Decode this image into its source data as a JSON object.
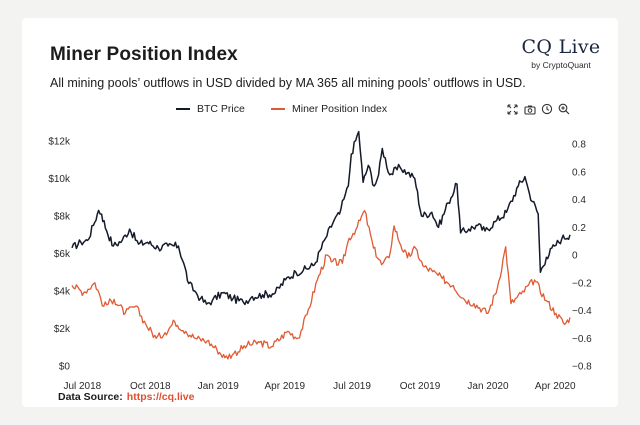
{
  "page": {
    "title": "Miner Position Index",
    "subtitle": "All mining pools’ outflows in USD divided by MA 365 all mining pools’ outflows in USD.",
    "brand": "CQ Live",
    "brand_by": "by CryptoQuant",
    "source_label": "Data Source:",
    "source_link": "https://cq.live"
  },
  "toolbar": {
    "icons": [
      "expand-icon",
      "camera-icon",
      "reset-icon",
      "zoom-in-icon"
    ]
  },
  "chart_data": {
    "type": "line",
    "title": "Miner Position Index",
    "colors": {
      "btc": "#141a2a",
      "mpi": "#e05a34"
    },
    "x_ticks": [
      "Jul 2018",
      "Oct 2018",
      "Jan 2019",
      "Apr 2019",
      "Jul 2019",
      "Oct 2019",
      "Jan 2020",
      "Apr 2020"
    ],
    "y_left": {
      "ticks": [
        "$0",
        "$2k",
        "$4k",
        "$6k",
        "$8k",
        "$10k",
        "$12k"
      ],
      "range": [
        0,
        12500
      ]
    },
    "y_right": {
      "ticks": [
        "0.8",
        "0.6",
        "0.4",
        "0.2",
        "0",
        "−0.2",
        "−0.4",
        "−0.6",
        "−0.8"
      ],
      "range": [
        -0.8,
        0.8
      ]
    },
    "x_range": [
      "2018-06-17",
      "2020-04-21"
    ],
    "grid": false,
    "legend_position": "top-center",
    "series": [
      {
        "name": "BTC Price",
        "axis": "left",
        "x": [
          "2018-06-17",
          "2018-06-29",
          "2018-07-08",
          "2018-07-16",
          "2018-07-23",
          "2018-07-27",
          "2018-08-03",
          "2018-08-12",
          "2018-08-24",
          "2018-09-03",
          "2018-09-15",
          "2018-09-27",
          "2018-10-12",
          "2018-10-25",
          "2018-11-08",
          "2018-11-15",
          "2018-11-22",
          "2018-11-30",
          "2018-12-08",
          "2018-12-16",
          "2018-12-24",
          "2019-01-07",
          "2019-01-21",
          "2019-02-04",
          "2019-02-16",
          "2019-03-02",
          "2019-03-19",
          "2019-04-02",
          "2019-04-16",
          "2019-04-26",
          "2019-05-11",
          "2019-05-26",
          "2019-06-07",
          "2019-06-14",
          "2019-06-20",
          "2019-06-26",
          "2019-06-30",
          "2019-07-10",
          "2019-07-16",
          "2019-07-23",
          "2019-07-31",
          "2019-08-06",
          "2019-08-11",
          "2019-08-21",
          "2019-09-04",
          "2019-09-14",
          "2019-09-24",
          "2019-10-03",
          "2019-10-17",
          "2019-10-26",
          "2019-11-08",
          "2019-11-20",
          "2019-11-25",
          "2019-12-06",
          "2019-12-18",
          "2019-12-28",
          "2020-01-11",
          "2020-01-26",
          "2020-02-11",
          "2020-02-20",
          "2020-02-26",
          "2020-03-09",
          "2020-03-12",
          "2020-03-20",
          "2020-03-31",
          "2020-04-10",
          "2020-04-21"
        ],
        "y": [
          6300,
          6600,
          6700,
          7500,
          8300,
          8100,
          7200,
          6400,
          6700,
          7300,
          6500,
          6600,
          6300,
          6400,
          6400,
          5500,
          4400,
          4000,
          3600,
          3300,
          3500,
          3900,
          3600,
          3400,
          3700,
          3800,
          3900,
          4600,
          5000,
          5100,
          5400,
          6800,
          7800,
          8100,
          8900,
          9600,
          11300,
          12500,
          9800,
          10700,
          9600,
          10200,
          11600,
          10200,
          10600,
          10300,
          10000,
          8000,
          8200,
          7400,
          8700,
          9700,
          7100,
          7300,
          7500,
          7200,
          7700,
          8200,
          9600,
          10100,
          9200,
          8100,
          5000,
          5800,
          6400,
          6800,
          7000
        ]
      },
      {
        "name": "Miner Position Index",
        "axis": "right",
        "x": [
          "2018-06-17",
          "2018-07-03",
          "2018-07-18",
          "2018-07-30",
          "2018-08-13",
          "2018-08-28",
          "2018-09-11",
          "2018-09-25",
          "2018-10-09",
          "2018-10-21",
          "2018-11-03",
          "2018-11-18",
          "2018-12-01",
          "2018-12-17",
          "2018-12-30",
          "2019-01-10",
          "2019-01-22",
          "2019-02-09",
          "2019-02-26",
          "2019-03-14",
          "2019-04-05",
          "2019-04-19",
          "2019-05-01",
          "2019-05-15",
          "2019-05-28",
          "2019-06-03",
          "2019-06-18",
          "2019-06-27",
          "2019-07-08",
          "2019-07-18",
          "2019-07-30",
          "2019-08-10",
          "2019-08-20",
          "2019-08-27",
          "2019-09-05",
          "2019-09-14",
          "2019-09-25",
          "2019-10-05",
          "2019-10-18",
          "2019-10-31",
          "2019-11-15",
          "2019-11-30",
          "2019-12-13",
          "2020-01-01",
          "2020-01-14",
          "2020-01-25",
          "2020-02-01",
          "2020-02-15",
          "2020-03-04",
          "2020-03-20",
          "2020-04-02",
          "2020-04-14",
          "2020-04-21"
        ],
        "y": [
          -0.22,
          -0.27,
          -0.2,
          -0.37,
          -0.32,
          -0.42,
          -0.37,
          -0.5,
          -0.6,
          -0.56,
          -0.48,
          -0.55,
          -0.6,
          -0.62,
          -0.68,
          -0.74,
          -0.71,
          -0.65,
          -0.63,
          -0.66,
          -0.55,
          -0.6,
          -0.43,
          -0.18,
          0.0,
          -0.05,
          -0.06,
          0.12,
          0.2,
          0.32,
          0.05,
          -0.07,
          -0.02,
          0.21,
          0.07,
          -0.02,
          0.05,
          -0.08,
          -0.12,
          -0.17,
          -0.22,
          -0.32,
          -0.35,
          -0.42,
          -0.23,
          0.06,
          -0.35,
          -0.28,
          -0.18,
          -0.33,
          -0.42,
          -0.5,
          -0.45
        ]
      }
    ]
  }
}
